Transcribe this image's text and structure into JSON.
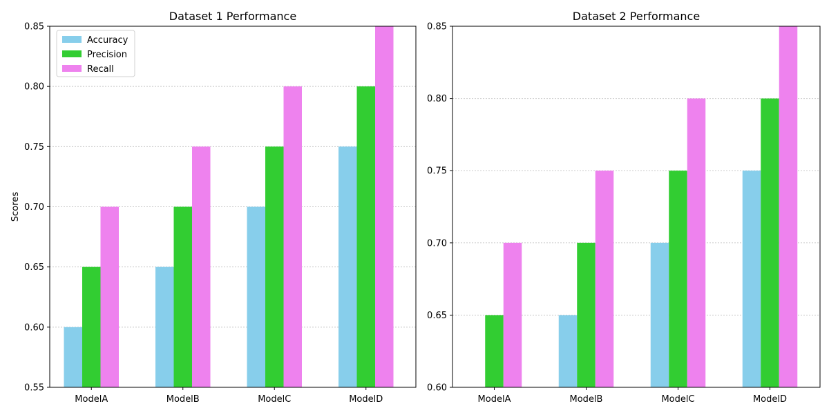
{
  "chart_data": [
    {
      "type": "bar",
      "title": "Dataset 1 Performance",
      "xlabel": "",
      "ylabel": "Scores",
      "categories": [
        "ModelA",
        "ModelB",
        "ModelC",
        "ModelD"
      ],
      "series": [
        {
          "name": "Accuracy",
          "color": "#87ceeb",
          "values": [
            0.6,
            0.65,
            0.7,
            0.75
          ]
        },
        {
          "name": "Precision",
          "color": "#32cd32",
          "values": [
            0.65,
            0.7,
            0.75,
            0.8
          ]
        },
        {
          "name": "Recall",
          "color": "#ee82ee",
          "values": [
            0.7,
            0.75,
            0.8,
            0.85
          ]
        }
      ],
      "ylim": [
        0.55,
        0.85
      ],
      "yticks": [
        "0.55",
        "0.60",
        "0.65",
        "0.70",
        "0.75",
        "0.80",
        "0.85"
      ],
      "grid": "horizontal-dotted",
      "legend": "top-left"
    },
    {
      "type": "bar",
      "title": "Dataset 2 Performance",
      "xlabel": "",
      "ylabel": "",
      "categories": [
        "ModelA",
        "ModelB",
        "ModelC",
        "ModelD"
      ],
      "series": [
        {
          "name": "Accuracy",
          "color": "#87ceeb",
          "values": [
            0.6,
            0.65,
            0.7,
            0.75
          ]
        },
        {
          "name": "Precision",
          "color": "#32cd32",
          "values": [
            0.65,
            0.7,
            0.75,
            0.8
          ]
        },
        {
          "name": "Recall",
          "color": "#ee82ee",
          "values": [
            0.7,
            0.75,
            0.8,
            0.85
          ]
        }
      ],
      "ylim": [
        0.6,
        0.85
      ],
      "yticks": [
        "0.60",
        "0.65",
        "0.70",
        "0.75",
        "0.80",
        "0.85"
      ],
      "grid": "horizontal-dotted",
      "legend": "none"
    }
  ]
}
